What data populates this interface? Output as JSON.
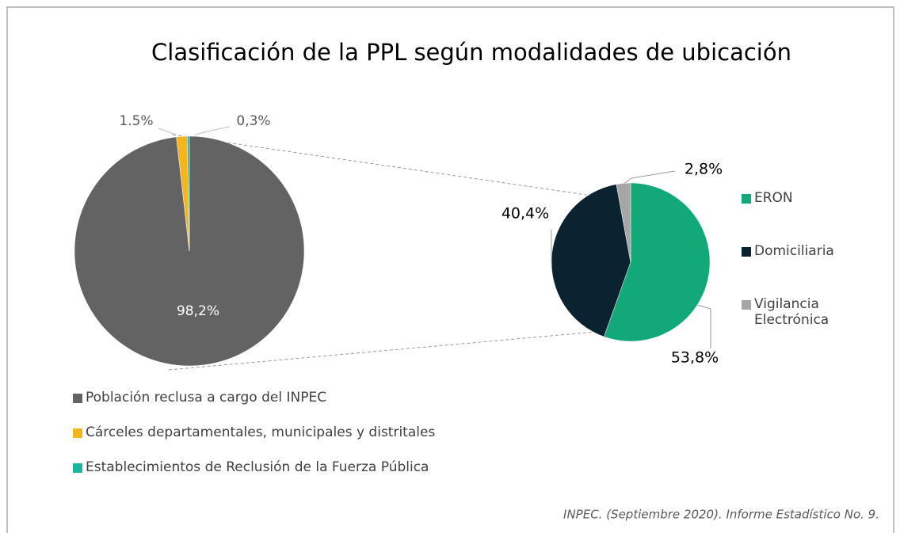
{
  "chart_data": [
    {
      "type": "pie",
      "title": "Clasificación de la PPL según modalidades de ubicación",
      "categories": [
        "Población reclusa a cargo del INPEC",
        "Cárceles departamentales, municipales y distritales",
        "Establecimientos de Reclusión de la Fuerza Pública"
      ],
      "values": [
        98.2,
        1.5,
        0.3
      ],
      "value_labels": [
        "98,2%",
        "1.5%",
        "0,3%"
      ],
      "colors": [
        "#636363",
        "#f5b51b",
        "#1bb5a0"
      ],
      "legend": "bottom"
    },
    {
      "type": "pie",
      "categories": [
        "ERON",
        "Domiciliaria",
        "Vigilancia Electrónica"
      ],
      "values": [
        53.8,
        40.4,
        2.8
      ],
      "value_labels": [
        "53,8%",
        "40,4%",
        "2,8%"
      ],
      "colors": [
        "#12a877",
        "#0b2230",
        "#a6a6a6"
      ],
      "legend": "right"
    }
  ],
  "source": "INPEC. (Septiembre 2020).  Informe Estadístico No. 9."
}
